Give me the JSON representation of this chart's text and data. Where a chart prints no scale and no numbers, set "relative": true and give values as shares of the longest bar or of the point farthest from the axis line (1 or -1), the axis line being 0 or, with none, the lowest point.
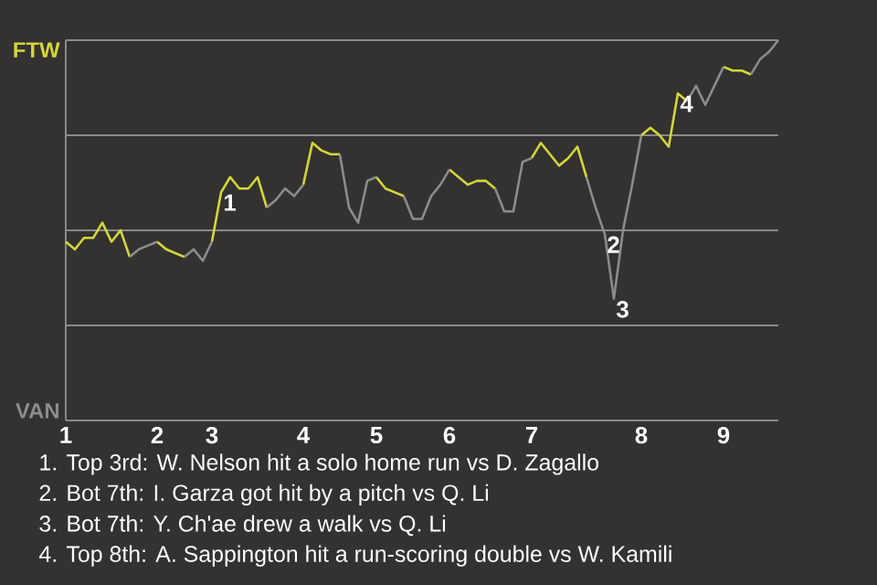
{
  "chart_data": {
    "type": "line",
    "relative": true,
    "categories": [
      "1",
      null,
      null,
      null,
      null,
      null,
      null,
      null,
      null,
      null,
      "2",
      null,
      null,
      null,
      null,
      null,
      "3",
      null,
      null,
      null,
      null,
      null,
      null,
      null,
      null,
      null,
      "4",
      null,
      null,
      null,
      null,
      null,
      null,
      null,
      "5",
      null,
      null,
      null,
      null,
      null,
      null,
      null,
      "6",
      null,
      null,
      null,
      null,
      null,
      null,
      null,
      null,
      "7",
      null,
      null,
      null,
      null,
      null,
      null,
      null,
      null,
      null,
      null,
      null,
      "8",
      null,
      null,
      null,
      null,
      null,
      null,
      null,
      null,
      "9",
      null,
      null,
      null,
      null,
      null,
      null
    ],
    "marker": "none",
    "grid": "y",
    "series": [
      {
        "color": "#d6d63a",
        "values": [
          0.47,
          0.45,
          0.48,
          0.48,
          0.52,
          0.47,
          0.5,
          0.43,
          null,
          null,
          0.47,
          0.45,
          0.44,
          0.43,
          null,
          null,
          0.47,
          0.6,
          0.64,
          0.61,
          0.61,
          0.64,
          0.56,
          null,
          null,
          null,
          0.62,
          0.73,
          0.71,
          0.7,
          0.7,
          null,
          null,
          null,
          0.64,
          0.61,
          0.6,
          0.59,
          null,
          null,
          null,
          null,
          0.66,
          0.64,
          0.62,
          0.63,
          0.63,
          0.61,
          null,
          null,
          null,
          0.69,
          0.73,
          0.7,
          0.67,
          0.69,
          0.72,
          0.64,
          null,
          null,
          null,
          null,
          null,
          0.75,
          0.77,
          0.75,
          0.72,
          0.86,
          0.84,
          null,
          null,
          null,
          0.93,
          0.92,
          0.92,
          0.91,
          null,
          null,
          null
        ]
      },
      {
        "color": "#8c8c8c",
        "values": [
          null,
          null,
          null,
          null,
          null,
          null,
          null,
          0.43,
          0.45,
          0.46,
          0.47,
          null,
          null,
          0.43,
          0.45,
          0.42,
          0.47,
          null,
          null,
          null,
          null,
          null,
          0.56,
          0.58,
          0.61,
          0.59,
          0.62,
          null,
          null,
          null,
          0.7,
          0.56,
          0.52,
          0.63,
          0.64,
          null,
          null,
          0.59,
          0.53,
          0.53,
          0.59,
          0.62,
          0.66,
          null,
          null,
          null,
          null,
          0.61,
          0.55,
          0.55,
          0.68,
          0.69,
          null,
          null,
          null,
          null,
          null,
          0.64,
          0.56,
          0.49,
          0.32,
          0.5,
          0.62,
          0.75,
          null,
          null,
          null,
          null,
          0.84,
          0.88,
          0.83,
          0.88,
          0.93,
          null,
          null,
          0.91,
          0.95,
          0.97,
          1
        ]
      }
    ],
    "annotations": [
      "FTW",
      "VAN",
      {
        "text": "1",
        "y": 0.6
      },
      {
        "text": "2",
        "y": 0.49
      },
      {
        "text": "3",
        "y": 0.32
      },
      {
        "text": "4",
        "y": 0.86
      },
      "1. Top 3rd: W. Nelson hit a solo home run vs D. Zagallo",
      "2. Bot 7th: I. Garza got hit by a pitch vs Q. Li",
      "3. Bot 7th: Y. Ch'ae drew a walk vs Q. Li",
      "4. Top 8th: A. Sappington hit a run-scoring double vs W. Kamili"
    ]
  }
}
